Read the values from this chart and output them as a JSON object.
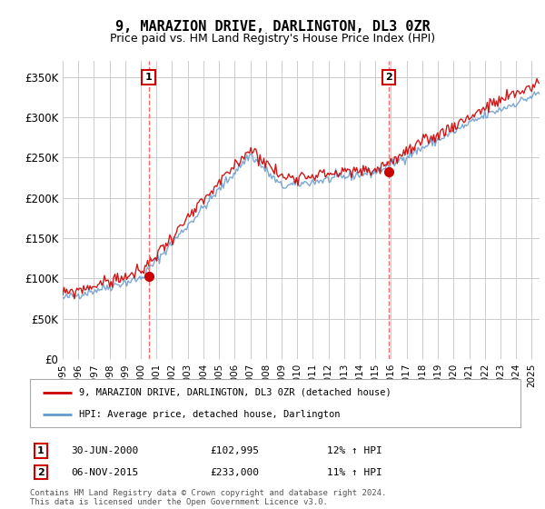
{
  "title": "9, MARAZION DRIVE, DARLINGTON, DL3 0ZR",
  "subtitle": "Price paid vs. HM Land Registry's House Price Index (HPI)",
  "ylabel_ticks": [
    "£0",
    "£50K",
    "£100K",
    "£150K",
    "£200K",
    "£250K",
    "£300K",
    "£350K"
  ],
  "ytick_values": [
    0,
    50000,
    100000,
    150000,
    200000,
    250000,
    300000,
    350000
  ],
  "ylim": [
    0,
    370000
  ],
  "xlim_start": 1995.0,
  "xlim_end": 2025.5,
  "line1_color": "#cc0000",
  "line2_color": "#6699cc",
  "sale1_x": 2000.5,
  "sale1_y": 102995,
  "sale2_x": 2015.84,
  "sale2_y": 233000,
  "legend_line1": "9, MARAZION DRIVE, DARLINGTON, DL3 0ZR (detached house)",
  "legend_line2": "HPI: Average price, detached house, Darlington",
  "note1_date": "30-JUN-2000",
  "note1_price": "£102,995",
  "note1_hpi": "12% ↑ HPI",
  "note2_date": "06-NOV-2015",
  "note2_price": "£233,000",
  "note2_hpi": "11% ↑ HPI",
  "footer": "Contains HM Land Registry data © Crown copyright and database right 2024.\nThis data is licensed under the Open Government Licence v3.0.",
  "background_color": "#ffffff",
  "grid_color": "#cccccc",
  "vline_color": "#ff6666",
  "box_color": "#cc0000"
}
